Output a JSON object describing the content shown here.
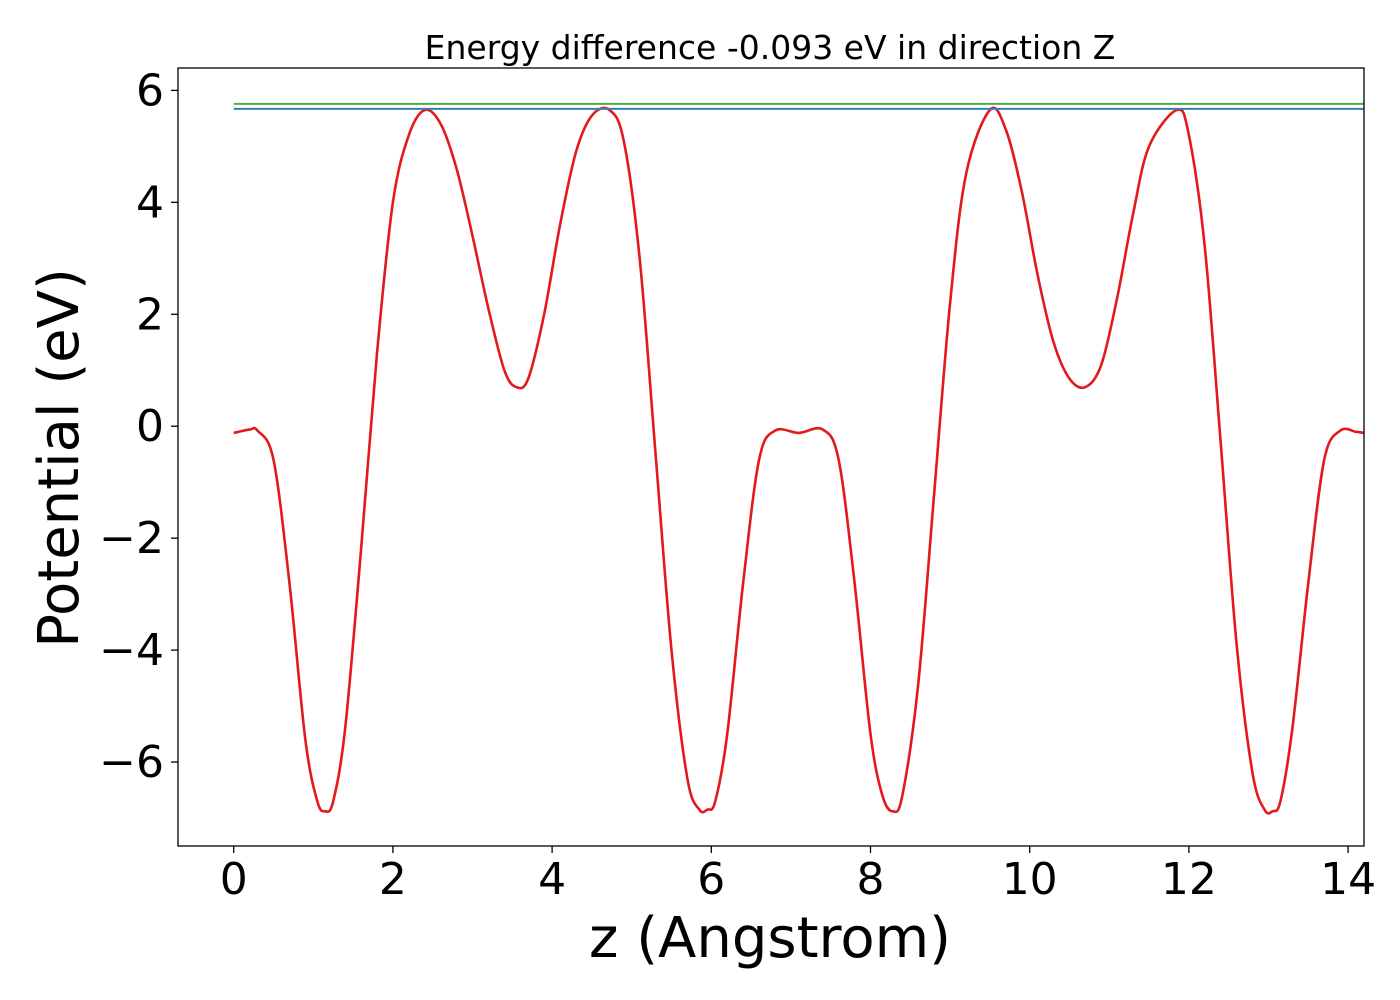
{
  "chart_data": {
    "type": "line",
    "title": "Energy difference -0.093 eV in direction Z",
    "xlabel": "z (Angstrom)",
    "ylabel": "Potential (eV)",
    "xlim": [
      -0.7,
      14.2
    ],
    "ylim": [
      -7.5,
      6.4
    ],
    "xticks": [
      0,
      2,
      4,
      6,
      8,
      10,
      12,
      14
    ],
    "xtick_labels": [
      "0",
      "2",
      "4",
      "6",
      "8",
      "10",
      "12",
      "14"
    ],
    "yticks": [
      6,
      4,
      2,
      0,
      -2,
      -4,
      -6
    ],
    "ytick_labels": [
      "6",
      "4",
      "2",
      "0",
      "−2",
      "−4",
      "−6"
    ],
    "grid": false,
    "colors": {
      "potential": "#e31a1c",
      "upper_level": "#4daf4a",
      "lower_level": "#377eb8"
    },
    "series": [
      {
        "color": "#e31a1c",
        "x": [
          0.0,
          0.2,
          0.3,
          0.5,
          0.7,
          0.9,
          1.05,
          1.15,
          1.25,
          1.4,
          1.6,
          1.8,
          2.0,
          2.2,
          2.4,
          2.6,
          2.8,
          3.0,
          3.2,
          3.4,
          3.55,
          3.7,
          3.9,
          4.1,
          4.3,
          4.5,
          4.72,
          4.9,
          5.1,
          5.3,
          5.5,
          5.7,
          5.85,
          5.95,
          6.05,
          6.2,
          6.4,
          6.6,
          6.8,
          7.1,
          7.4,
          7.6,
          7.8,
          8.0,
          8.15,
          8.28,
          8.4,
          8.6,
          8.8,
          9.0,
          9.2,
          9.5,
          9.7,
          9.9,
          10.1,
          10.3,
          10.5,
          10.7,
          10.9,
          11.1,
          11.3,
          11.5,
          11.85,
          12.0,
          12.2,
          12.4,
          12.6,
          12.8,
          12.95,
          13.05,
          13.15,
          13.3,
          13.5,
          13.7,
          13.9,
          14.1,
          14.2
        ],
        "y": [
          -0.12,
          -0.06,
          -0.08,
          -0.6,
          -2.8,
          -5.6,
          -6.7,
          -6.88,
          -6.7,
          -5.4,
          -2.2,
          1.3,
          4.0,
          5.2,
          5.65,
          5.4,
          4.6,
          3.4,
          2.1,
          1.0,
          0.7,
          0.85,
          2.0,
          3.6,
          4.9,
          5.55,
          5.65,
          5.1,
          3.0,
          -0.5,
          -4.0,
          -6.3,
          -6.85,
          -6.85,
          -6.7,
          -5.5,
          -2.8,
          -0.6,
          -0.08,
          -0.12,
          -0.06,
          -0.6,
          -2.8,
          -5.5,
          -6.6,
          -6.88,
          -6.6,
          -4.6,
          -1.2,
          2.2,
          4.5,
          5.65,
          5.3,
          4.2,
          2.7,
          1.5,
          0.85,
          0.7,
          1.1,
          2.3,
          3.8,
          5.0,
          5.65,
          5.2,
          3.2,
          -0.3,
          -3.9,
          -6.2,
          -6.85,
          -6.88,
          -6.7,
          -5.4,
          -2.8,
          -0.6,
          -0.08,
          -0.1,
          -0.12
        ]
      },
      {
        "color": "#4daf4a",
        "x": [
          0.0,
          14.2
        ],
        "y": [
          5.76,
          5.76
        ]
      },
      {
        "color": "#377eb8",
        "x": [
          0.0,
          14.2
        ],
        "y": [
          5.67,
          5.67
        ]
      }
    ]
  }
}
